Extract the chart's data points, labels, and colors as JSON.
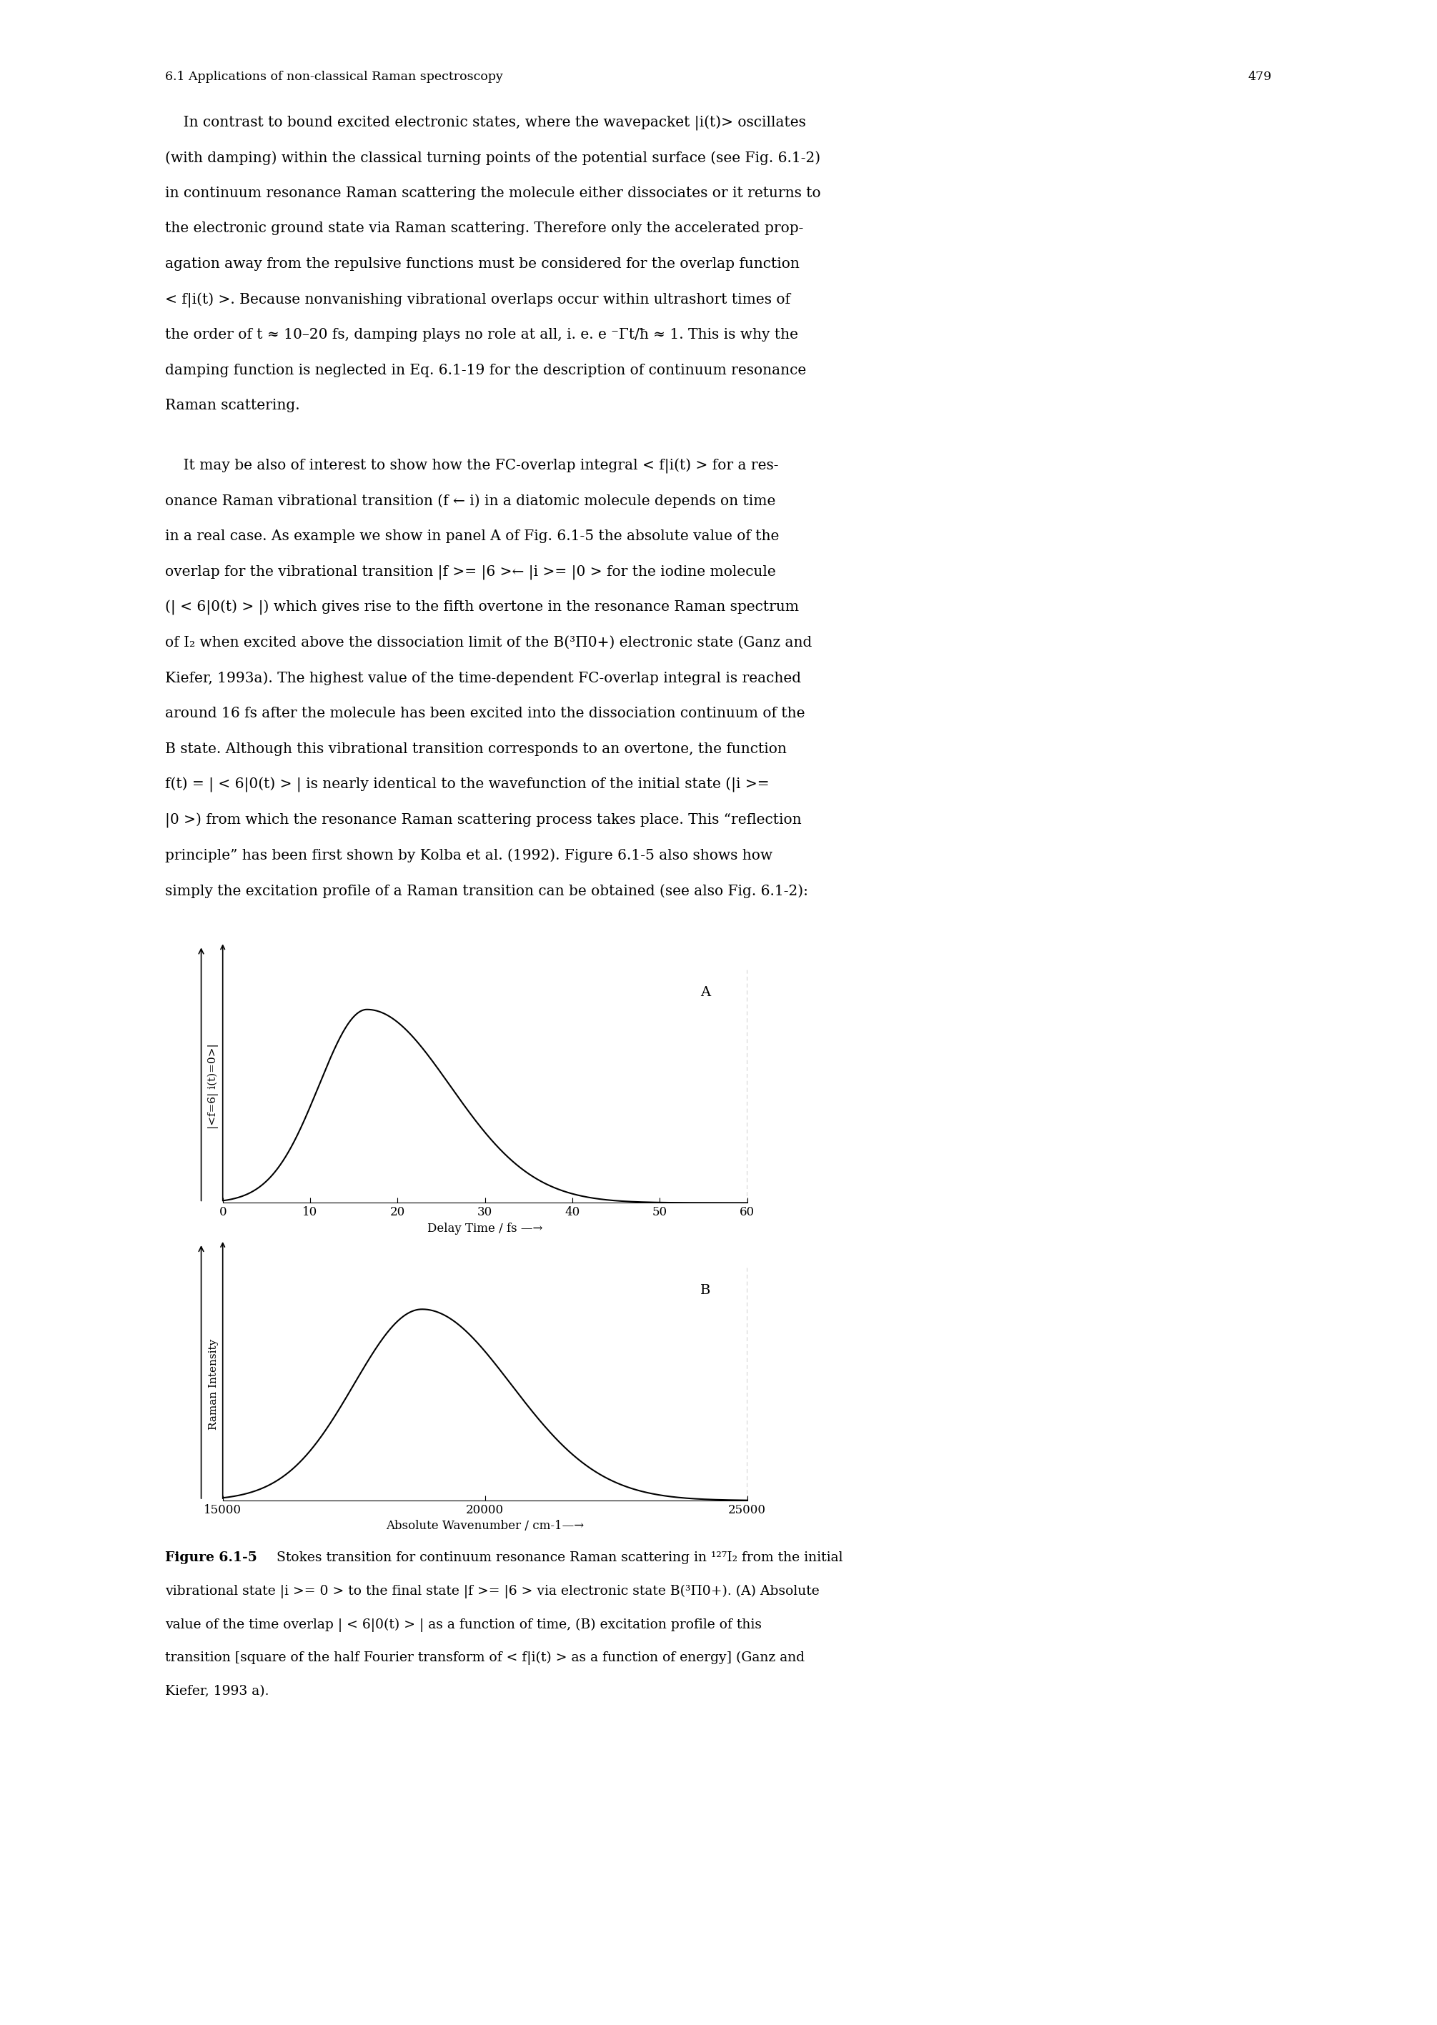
{
  "page_number": "479",
  "header_text": "6.1 Applications of non-classical Raman spectroscopy",
  "para1_lines": [
    "    In contrast to bound excited electronic states, where the wavepacket |i(t)> oscillates",
    "(with damping) within the classical turning points of the potential surface (see Fig. 6.1-2)",
    "in continuum resonance Raman scattering the molecule either dissociates or it returns to",
    "the electronic ground state via Raman scattering. Therefore only the accelerated prop-",
    "agation away from the repulsive functions must be considered for the overlap function",
    "< f|i(t) >. Because nonvanishing vibrational overlaps occur within ultrashort times of",
    "the order of t ≈ 10–20 fs, damping plays no role at all, i. e. e ⁻Γt/ħ ≈ 1. This is why the",
    "damping function is neglected in Eq. 6.1-19 for the description of continuum resonance",
    "Raman scattering."
  ],
  "para2_lines": [
    "    It may be also of interest to show how the FC-overlap integral < f|i(t) > for a res-",
    "onance Raman vibrational transition (f ← i) in a diatomic molecule depends on time",
    "in a real case. As example we show in panel A of Fig. 6.1-5 the absolute value of the",
    "overlap for the vibrational transition |f >= |6 >← |i >= |0 > for the iodine molecule",
    "(| < 6|0(t) > |) which gives rise to the fifth overtone in the resonance Raman spectrum",
    "of I₂ when excited above the dissociation limit of the B(³Π0+) electronic state (Ganz and",
    "Kiefer, 1993a). The highest value of the time-dependent FC-overlap integral is reached",
    "around 16 fs after the molecule has been excited into the dissociation continuum of the",
    "B state. Although this vibrational transition corresponds to an overtone, the function",
    "f(t) = | < 6|0(t) > | is nearly identical to the wavefunction of the initial state (|i >=",
    "|0 >) from which the resonance Raman scattering process takes place. This “reflection",
    "principle” has been first shown by Kolba et al. (1992). Figure 6.1-5 also shows how",
    "simply the excitation profile of a Raman transition can be obtained (see also Fig. 6.1-2):"
  ],
  "subplot_A_label": "A",
  "subplot_B_label": "B",
  "subplot_A_ylabel": "|<f=6| i(t)=0>|",
  "subplot_A_xlabel": "Delay Time / fs —→",
  "subplot_A_xlim": [
    0,
    60
  ],
  "subplot_A_xticks": [
    0,
    10,
    20,
    30,
    40,
    50,
    60
  ],
  "subplot_B_ylabel": "Raman Intensity",
  "subplot_B_xlabel": "Absolute Wavenumber / cm-1—→",
  "subplot_B_xlim": [
    15000,
    25000
  ],
  "subplot_B_xticks": [
    15000,
    20000,
    25000
  ],
  "caption_bold": "Figure 6.1-5",
  "caption_rest": " Stokes transition for continuum resonance Raman scattering in ¹²⁷I₂ from the initial",
  "caption_lines": [
    "vibrational state |i >= 0 > to the final state |f >= |6 > via electronic state B(³Π0+). (A) Absolute",
    "value of the time overlap | < 6|0(t) > | as a function of time, (B) excitation profile of this",
    "transition [square of the half Fourier transform of < f|i(t) > as a function of energy] (Ganz and",
    "Kiefer, 1993 a)."
  ],
  "background_color": "#ffffff",
  "text_color": "#000000",
  "curve_color": "#000000"
}
